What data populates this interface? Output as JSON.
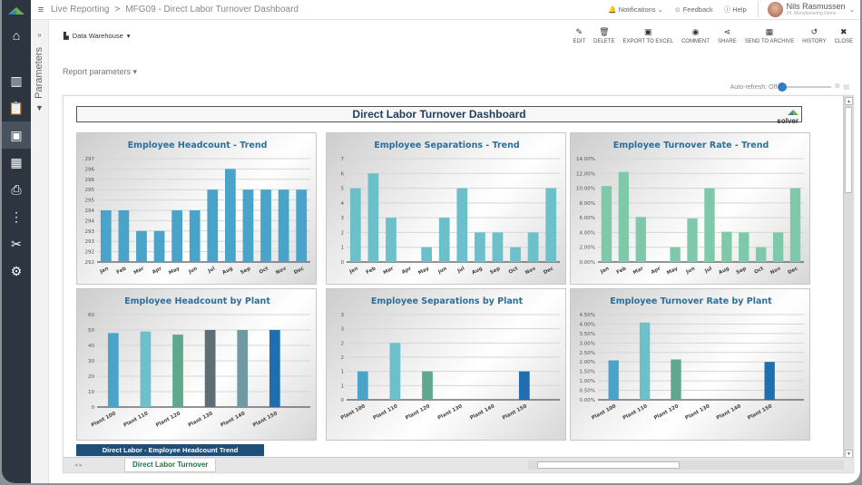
{
  "header": {
    "breadcrumb_root": "Live Reporting",
    "breadcrumb_sep": ">",
    "breadcrumb_page": "MFG09 - Direct Labor Turnover Dashboard",
    "notifications": "Notifications",
    "feedback": "Feedback",
    "help": "Help",
    "user_name": "Nils Rasmussen",
    "user_company": "09. Manufacturing Demo"
  },
  "sidebar": {
    "items": [
      {
        "icon": "home-icon"
      },
      {
        "icon": "library-icon"
      },
      {
        "icon": "clipboard-icon"
      },
      {
        "icon": "report-icon",
        "active": true
      },
      {
        "icon": "calculator-icon"
      },
      {
        "icon": "user-doc-icon"
      },
      {
        "icon": "hierarchy-icon"
      },
      {
        "icon": "tools-icon"
      },
      {
        "icon": "gear-icon"
      }
    ]
  },
  "params_panel": {
    "label": "Parameters"
  },
  "toolbar": {
    "data_source": "Data Warehouse",
    "actions": [
      {
        "label": "EDIT",
        "icon": "✎"
      },
      {
        "label": "DELETE",
        "icon": "🗑"
      },
      {
        "label": "EXPORT TO EXCEL",
        "icon": "▣"
      },
      {
        "label": "COMMENT",
        "icon": "◉"
      },
      {
        "label": "SHARE",
        "icon": "⋖"
      },
      {
        "label": "SEND TO ARCHIVE",
        "icon": "▦"
      },
      {
        "label": "HISTORY",
        "icon": "↺"
      },
      {
        "label": "CLOSE",
        "icon": "✖"
      }
    ]
  },
  "report_params": "Report parameters",
  "auto_refresh": "Auto-refresh: Off",
  "report": {
    "title": "Direct Labor Turnover Dashboard",
    "brand": "solver",
    "table_header": "Direct Labor - Employee Headcount Trend",
    "sheet_tab": "Direct Labor Turnover"
  },
  "chart_data": [
    {
      "type": "bar",
      "title": "Employee Headcount - Trend",
      "categories": [
        "Jan",
        "Feb",
        "Mar",
        "Apr",
        "May",
        "Jun",
        "Jul",
        "Aug",
        "Sep",
        "Oct",
        "Nov",
        "Dec"
      ],
      "values": [
        294,
        294,
        293,
        293,
        294,
        294,
        295,
        296,
        295,
        295,
        295,
        295
      ],
      "ylim": [
        291.5,
        296.5
      ],
      "yticks": [
        "292",
        "292",
        "293",
        "293",
        "294",
        "294",
        "295",
        "295",
        "296",
        "296",
        "297"
      ],
      "color": "#4aa3c8"
    },
    {
      "type": "bar",
      "title": "Employee Separations - Trend",
      "categories": [
        "Jan",
        "Feb",
        "Mar",
        "Apr",
        "May",
        "Jun",
        "Jul",
        "Aug",
        "Sep",
        "Oct",
        "Nov",
        "Dec"
      ],
      "values": [
        5,
        6,
        3,
        0,
        1,
        3,
        5,
        2,
        2,
        1,
        2,
        5
      ],
      "ylim": [
        0,
        7
      ],
      "yticks": [
        "0",
        "1",
        "2",
        "3",
        "4",
        "5",
        "6",
        "7"
      ],
      "color": "#6cc0c9"
    },
    {
      "type": "bar",
      "title": "Employee Turnover Rate - Trend",
      "categories": [
        "Jan",
        "Feb",
        "Mar",
        "Apr",
        "May",
        "Jun",
        "Jul",
        "Aug",
        "Sep",
        "Oct",
        "Nov",
        "Dec"
      ],
      "values": [
        10.3,
        12.2,
        6.1,
        0,
        2.0,
        5.9,
        10.0,
        4.1,
        4.0,
        2.0,
        4.0,
        10.0
      ],
      "ylim": [
        0,
        14
      ],
      "yticks": [
        "0.00%",
        "2.00%",
        "4.00%",
        "6.00%",
        "8.00%",
        "10.00%",
        "12.00%",
        "14.00%"
      ],
      "color": "#7ec9aa"
    },
    {
      "type": "bar",
      "title": "Employee Headcount by Plant",
      "categories": [
        "Plant 100",
        "Plant 110",
        "Plant 120",
        "Plant 130",
        "Plant 140",
        "Plant 150"
      ],
      "values": [
        48,
        49,
        47,
        50,
        50,
        50
      ],
      "ylim": [
        0,
        60
      ],
      "yticks": [
        "0",
        "10",
        "20",
        "30",
        "40",
        "50",
        "60"
      ],
      "colors": [
        "#4aa3c8",
        "#6cc0c9",
        "#5fa88e",
        "#5e6e73",
        "#6f9aa4",
        "#1f6fb0"
      ]
    },
    {
      "type": "bar",
      "title": "Employee Separations by Plant",
      "categories": [
        "Plant 100",
        "Plant 110",
        "Plant 120",
        "Plant 130",
        "Plant 140",
        "Plant 150"
      ],
      "values": [
        1,
        2,
        1,
        0,
        0,
        1
      ],
      "ylim": [
        0,
        3
      ],
      "yticks": [
        "0",
        "1",
        "1",
        "2",
        "2",
        "3",
        "3"
      ],
      "colors": [
        "#4aa3c8",
        "#6cc0c9",
        "#5fa88e",
        "#5e6e73",
        "#6f9aa4",
        "#1f6fb0"
      ]
    },
    {
      "type": "bar",
      "title": "Employee Turnover Rate by Plant",
      "categories": [
        "Plant 100",
        "Plant 110",
        "Plant 120",
        "Plant 130",
        "Plant 140",
        "Plant 150"
      ],
      "values": [
        2.08,
        4.08,
        2.13,
        0,
        0,
        2.0
      ],
      "ylim": [
        0,
        4.5
      ],
      "yticks": [
        "0.00%",
        "0.50%",
        "1.00%",
        "1.50%",
        "2.00%",
        "2.50%",
        "3.00%",
        "3.50%",
        "4.00%",
        "4.50%"
      ],
      "colors": [
        "#4aa3c8",
        "#6cc0c9",
        "#5fa88e",
        "#5e6e73",
        "#6f9aa4",
        "#1f6fb0"
      ]
    }
  ]
}
